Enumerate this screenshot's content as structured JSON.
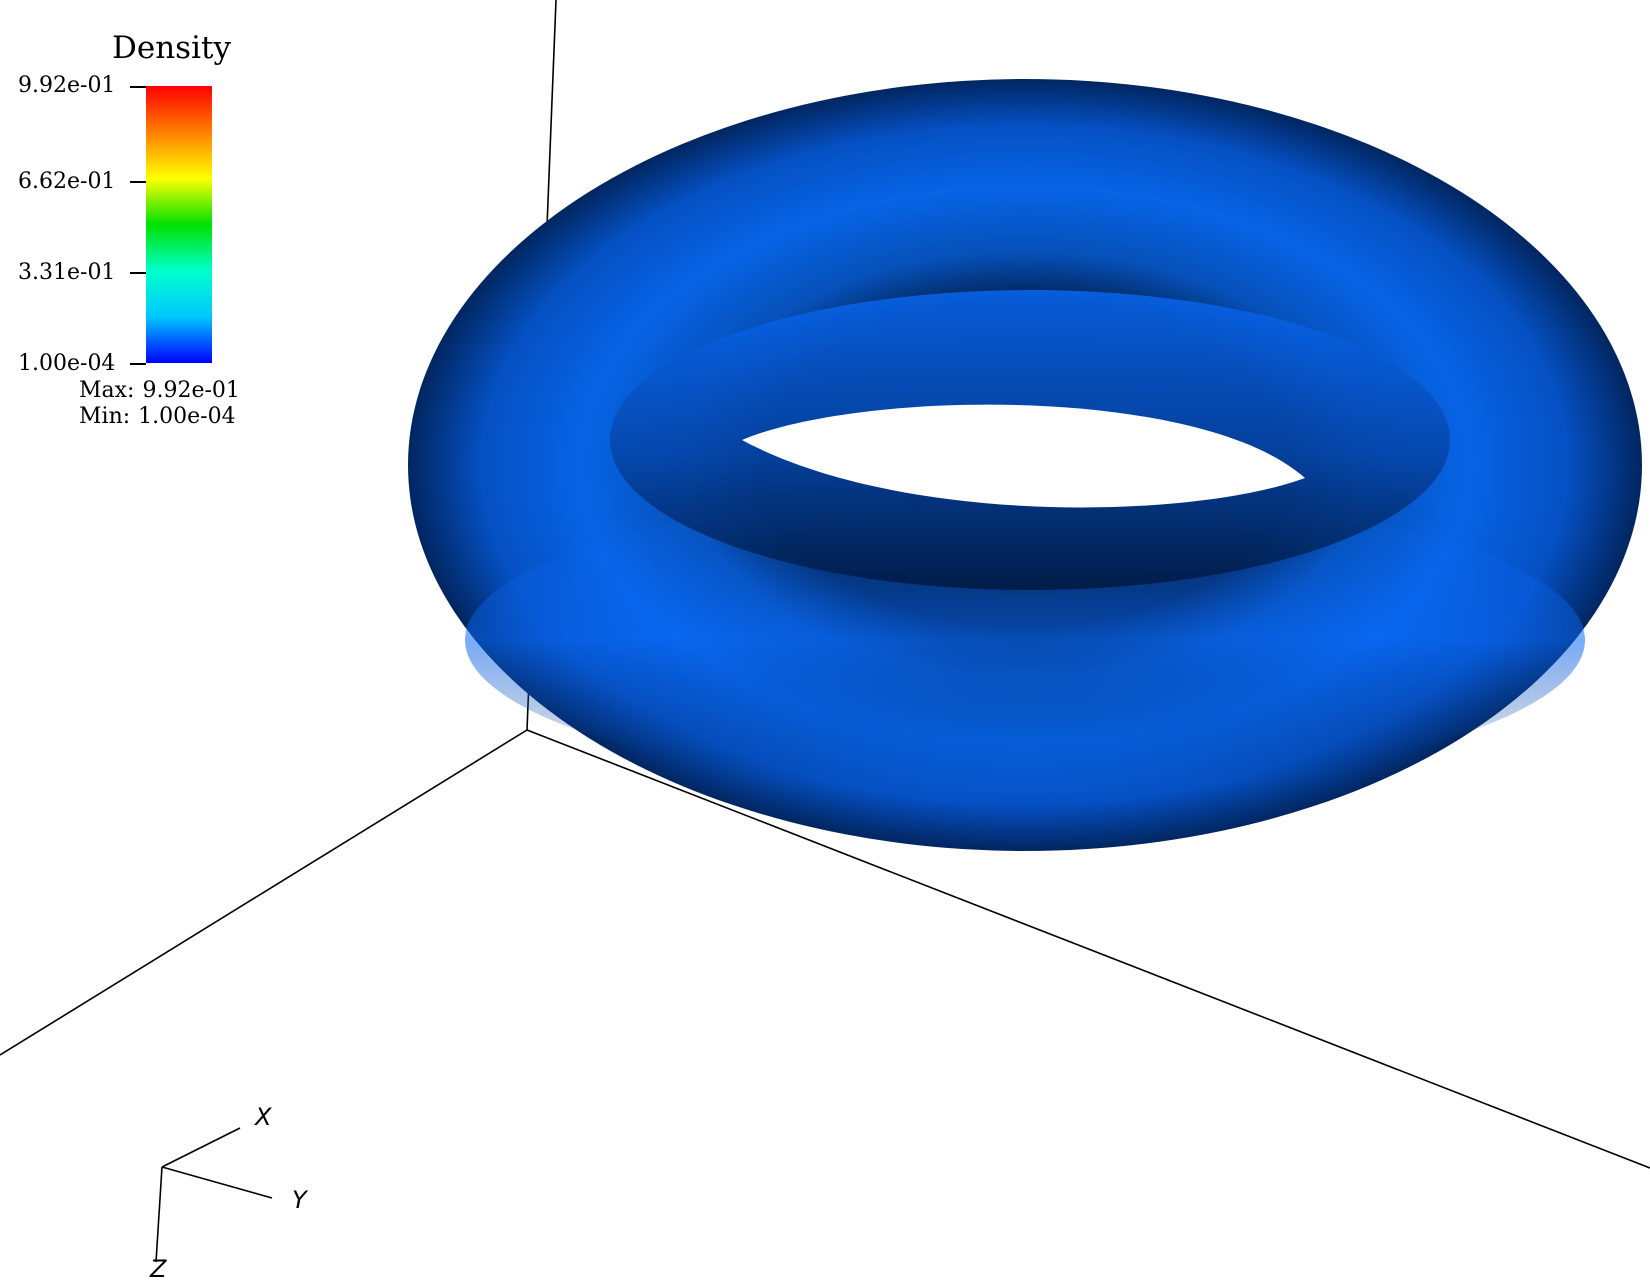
{
  "legend": {
    "title": "Density",
    "ticks": [
      "9.92e-01",
      "6.62e-01",
      "3.31e-01",
      "1.00e-04"
    ],
    "max_label": "Max:",
    "max_value": "9.92e-01",
    "min_label": "Min:",
    "min_value": "1.00e-04",
    "gradient_colors": [
      "#ff0000",
      "#ff8000",
      "#ffff00",
      "#00e000",
      "#00ffcc",
      "#00c8ff",
      "#0000ff"
    ]
  },
  "axes": {
    "x": "X",
    "y": "Y",
    "z": "Z"
  },
  "scene": {
    "object": "torus",
    "surface_color": "#0457c8",
    "background": "#ffffff"
  }
}
